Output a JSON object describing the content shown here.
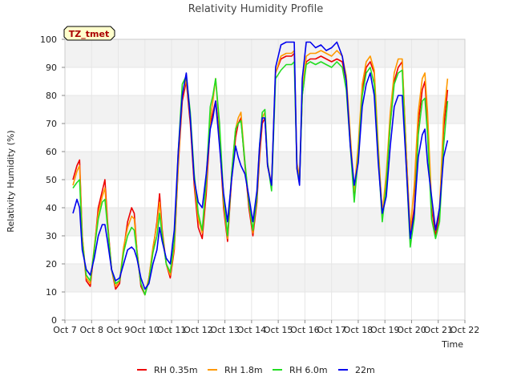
{
  "chart_data": {
    "type": "line",
    "title": "Relativity Humidity Profile",
    "xlabel": "Time",
    "ylabel": "Relativity Humidity (%)",
    "badge": "TZ_tmet",
    "xlim": [
      7,
      22
    ],
    "ylim": [
      0,
      100
    ],
    "x_ticks": [
      {
        "value": 7,
        "label": "Oct 7"
      },
      {
        "value": 8,
        "label": "Oct 8"
      },
      {
        "value": 9,
        "label": "Oct 9"
      },
      {
        "value": 10,
        "label": "Oct 10"
      },
      {
        "value": 11,
        "label": "Oct 11"
      },
      {
        "value": 12,
        "label": "Oct 12"
      },
      {
        "value": 13,
        "label": "Oct 13"
      },
      {
        "value": 14,
        "label": "Oct 14"
      },
      {
        "value": 15,
        "label": "Oct 15"
      },
      {
        "value": 16,
        "label": "Oct 16"
      },
      {
        "value": 17,
        "label": "Oct 17"
      },
      {
        "value": 18,
        "label": "Oct 18"
      },
      {
        "value": 19,
        "label": "Oct 19"
      },
      {
        "value": 20,
        "label": "Oct 20"
      },
      {
        "value": 21,
        "label": "Oct 21"
      },
      {
        "value": 22,
        "label": "Oct 22"
      }
    ],
    "y_ticks": [
      0,
      10,
      20,
      30,
      40,
      50,
      60,
      70,
      80,
      90,
      100
    ],
    "grid": true,
    "band_color": "#f2f2f2",
    "legend_position": "bottom",
    "series": [
      {
        "name": "RH 0.35m",
        "color": "#ee0000",
        "x": [
          7.3,
          7.45,
          7.55,
          7.65,
          7.8,
          7.95,
          8.1,
          8.25,
          8.4,
          8.5,
          8.6,
          8.75,
          8.9,
          9.05,
          9.2,
          9.35,
          9.5,
          9.6,
          9.7,
          9.85,
          10.0,
          10.15,
          10.3,
          10.45,
          10.55,
          10.65,
          10.8,
          10.95,
          11.1,
          11.25,
          11.4,
          11.55,
          11.7,
          11.85,
          12.0,
          12.15,
          12.3,
          12.45,
          12.55,
          12.65,
          12.8,
          12.95,
          13.1,
          13.25,
          13.4,
          13.5,
          13.6,
          13.75,
          13.9,
          14.05,
          14.2,
          14.3,
          14.4,
          14.5,
          14.6,
          14.75,
          14.9,
          15.1,
          15.3,
          15.5,
          15.6,
          15.7,
          15.8,
          15.9,
          16.05,
          16.2,
          16.4,
          16.6,
          16.8,
          17.0,
          17.2,
          17.4,
          17.55,
          17.7,
          17.85,
          18.0,
          18.15,
          18.3,
          18.45,
          18.6,
          18.75,
          18.9,
          19.05,
          19.2,
          19.35,
          19.5,
          19.65,
          19.8,
          19.95,
          20.1,
          20.25,
          20.4,
          20.5,
          20.6,
          20.75,
          20.9,
          21.05,
          21.2,
          21.35
        ],
        "y": [
          50,
          55,
          57,
          30,
          14,
          12,
          25,
          40,
          46,
          50,
          35,
          18,
          11,
          13,
          25,
          35,
          40,
          38,
          25,
          12,
          9,
          15,
          25,
          35,
          45,
          32,
          20,
          15,
          25,
          55,
          78,
          85,
          70,
          48,
          33,
          29,
          45,
          70,
          74,
          78,
          65,
          40,
          28,
          50,
          65,
          70,
          72,
          55,
          40,
          30,
          42,
          58,
          70,
          72,
          55,
          48,
          88,
          93,
          94,
          94,
          95,
          55,
          50,
          80,
          92,
          93,
          93,
          94,
          93,
          92,
          93,
          92,
          85,
          65,
          45,
          60,
          82,
          90,
          92,
          88,
          60,
          38,
          50,
          70,
          85,
          90,
          92,
          60,
          30,
          40,
          70,
          82,
          85,
          70,
          40,
          30,
          38,
          68,
          82
        ]
      },
      {
        "name": "RH 1.8m",
        "color": "#ff9900",
        "x": [
          7.3,
          7.45,
          7.55,
          7.65,
          7.8,
          7.95,
          8.1,
          8.25,
          8.4,
          8.5,
          8.6,
          8.75,
          8.9,
          9.05,
          9.2,
          9.35,
          9.5,
          9.6,
          9.7,
          9.85,
          10.0,
          10.15,
          10.3,
          10.45,
          10.55,
          10.65,
          10.8,
          10.95,
          11.1,
          11.25,
          11.4,
          11.55,
          11.7,
          11.85,
          12.0,
          12.15,
          12.3,
          12.45,
          12.55,
          12.65,
          12.8,
          12.95,
          13.1,
          13.25,
          13.4,
          13.5,
          13.6,
          13.75,
          13.9,
          14.05,
          14.2,
          14.3,
          14.4,
          14.5,
          14.6,
          14.75,
          14.9,
          15.1,
          15.3,
          15.5,
          15.6,
          15.7,
          15.8,
          15.9,
          16.05,
          16.2,
          16.4,
          16.6,
          16.8,
          17.0,
          17.2,
          17.4,
          17.55,
          17.7,
          17.85,
          18.0,
          18.15,
          18.3,
          18.45,
          18.6,
          18.75,
          18.9,
          19.05,
          19.2,
          19.35,
          19.5,
          19.65,
          19.8,
          19.95,
          20.1,
          20.25,
          20.4,
          20.5,
          20.6,
          20.75,
          20.9,
          21.05,
          21.2,
          21.35
        ],
        "y": [
          48,
          53,
          55,
          30,
          15,
          13,
          26,
          38,
          44,
          47,
          34,
          18,
          12,
          14,
          26,
          33,
          37,
          36,
          25,
          13,
          9,
          15,
          26,
          34,
          42,
          31,
          20,
          16,
          26,
          56,
          80,
          86,
          72,
          50,
          36,
          31,
          48,
          72,
          78,
          86,
          68,
          42,
          29,
          52,
          68,
          72,
          74,
          56,
          42,
          31,
          44,
          60,
          72,
          74,
          56,
          48,
          88,
          94,
          95,
          95,
          96,
          56,
          51,
          82,
          94,
          95,
          95,
          96,
          95,
          94,
          96,
          94,
          87,
          66,
          46,
          62,
          84,
          92,
          94,
          89,
          62,
          38,
          52,
          74,
          88,
          93,
          93,
          60,
          32,
          48,
          74,
          86,
          88,
          74,
          42,
          32,
          40,
          72,
          86
        ]
      },
      {
        "name": "RH 6.0m",
        "color": "#22dd22",
        "x": [
          7.3,
          7.45,
          7.55,
          7.65,
          7.8,
          7.95,
          8.1,
          8.25,
          8.4,
          8.5,
          8.6,
          8.75,
          8.9,
          9.05,
          9.2,
          9.35,
          9.5,
          9.6,
          9.7,
          9.85,
          10.0,
          10.15,
          10.3,
          10.45,
          10.55,
          10.65,
          10.8,
          10.95,
          11.1,
          11.25,
          11.4,
          11.55,
          11.7,
          11.85,
          12.0,
          12.15,
          12.3,
          12.45,
          12.55,
          12.65,
          12.8,
          12.95,
          13.1,
          13.25,
          13.4,
          13.5,
          13.6,
          13.75,
          13.9,
          14.05,
          14.2,
          14.3,
          14.4,
          14.5,
          14.6,
          14.75,
          14.9,
          15.1,
          15.3,
          15.5,
          15.6,
          15.7,
          15.8,
          15.9,
          16.05,
          16.2,
          16.4,
          16.6,
          16.8,
          17.0,
          17.2,
          17.4,
          17.55,
          17.7,
          17.85,
          18.0,
          18.15,
          18.3,
          18.45,
          18.6,
          18.75,
          18.9,
          19.05,
          19.2,
          19.35,
          19.5,
          19.65,
          19.8,
          19.95,
          20.1,
          20.25,
          20.4,
          20.5,
          20.6,
          20.75,
          20.9,
          21.05,
          21.2,
          21.35
        ],
        "y": [
          47,
          49,
          50,
          28,
          16,
          14,
          25,
          36,
          42,
          43,
          33,
          18,
          13,
          14,
          24,
          30,
          33,
          32,
          24,
          13,
          9,
          14,
          24,
          30,
          38,
          30,
          20,
          17,
          28,
          60,
          84,
          87,
          74,
          52,
          38,
          32,
          50,
          76,
          80,
          86,
          70,
          44,
          30,
          52,
          68,
          70,
          71,
          56,
          42,
          32,
          44,
          62,
          74,
          75,
          56,
          46,
          86,
          89,
          91,
          91,
          92,
          54,
          49,
          80,
          91,
          92,
          91,
          92,
          91,
          90,
          92,
          90,
          82,
          62,
          42,
          58,
          80,
          88,
          90,
          84,
          58,
          35,
          48,
          70,
          84,
          88,
          89,
          55,
          26,
          36,
          66,
          78,
          79,
          66,
          36,
          29,
          35,
          62,
          78
        ]
      },
      {
        "name": "22m",
        "color": "#0000ee",
        "x": [
          7.3,
          7.45,
          7.55,
          7.65,
          7.8,
          7.95,
          8.1,
          8.25,
          8.4,
          8.5,
          8.6,
          8.75,
          8.9,
          9.05,
          9.2,
          9.35,
          9.5,
          9.6,
          9.7,
          9.85,
          10.0,
          10.15,
          10.3,
          10.45,
          10.55,
          10.65,
          10.8,
          10.95,
          11.1,
          11.25,
          11.4,
          11.55,
          11.7,
          11.85,
          12.0,
          12.15,
          12.3,
          12.45,
          12.55,
          12.65,
          12.8,
          12.95,
          13.1,
          13.25,
          13.4,
          13.5,
          13.6,
          13.75,
          13.9,
          14.05,
          14.2,
          14.3,
          14.4,
          14.5,
          14.6,
          14.75,
          14.9,
          15.1,
          15.3,
          15.5,
          15.6,
          15.7,
          15.8,
          15.9,
          16.05,
          16.2,
          16.4,
          16.6,
          16.8,
          17.0,
          17.2,
          17.4,
          17.55,
          17.7,
          17.85,
          18.0,
          18.15,
          18.3,
          18.45,
          18.6,
          18.75,
          18.9,
          19.05,
          19.2,
          19.35,
          19.5,
          19.65,
          19.8,
          19.95,
          20.1,
          20.25,
          20.4,
          20.5,
          20.6,
          20.75,
          20.9,
          21.05,
          21.2,
          21.35
        ],
        "y": [
          38,
          43,
          40,
          25,
          18,
          16,
          22,
          30,
          34,
          34,
          28,
          18,
          14,
          15,
          20,
          25,
          26,
          25,
          22,
          15,
          11,
          13,
          20,
          25,
          33,
          28,
          22,
          20,
          32,
          60,
          80,
          88,
          72,
          50,
          42,
          40,
          52,
          68,
          72,
          78,
          62,
          45,
          35,
          50,
          62,
          58,
          55,
          52,
          44,
          35,
          46,
          62,
          72,
          72,
          55,
          48,
          90,
          98,
          99,
          99,
          99,
          54,
          48,
          86,
          99,
          99,
          97,
          98,
          96,
          97,
          99,
          94,
          85,
          62,
          48,
          56,
          76,
          84,
          88,
          80,
          56,
          38,
          44,
          62,
          76,
          80,
          80,
          55,
          29,
          38,
          58,
          66,
          68,
          56,
          44,
          32,
          40,
          58,
          64
        ]
      }
    ]
  }
}
